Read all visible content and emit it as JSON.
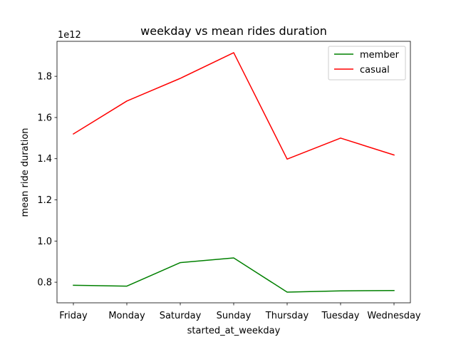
{
  "chart_data": {
    "type": "line",
    "title": "weekday vs mean rides duration",
    "xlabel": "started_at_weekday",
    "ylabel": "mean ride duration",
    "y_offset_text": "1e12",
    "categories": [
      "Friday",
      "Monday",
      "Saturday",
      "Sunday",
      "Thursday",
      "Tuesday",
      "Wednesday"
    ],
    "series": [
      {
        "name": "member",
        "color": "#008000",
        "values": [
          0.785,
          0.781,
          0.895,
          0.918,
          0.752,
          0.758,
          0.76
        ]
      },
      {
        "name": "casual",
        "color": "#ff0000",
        "values": [
          1.52,
          1.68,
          1.79,
          1.915,
          1.398,
          1.5,
          1.418
        ]
      }
    ],
    "ylim": [
      0.7,
      1.97
    ],
    "yticks": [
      0.8,
      1.0,
      1.2,
      1.4,
      1.6,
      1.8
    ],
    "ytick_labels": [
      "0.8",
      "1.0",
      "1.2",
      "1.4",
      "1.6",
      "1.8"
    ],
    "legend_position": "upper right",
    "grid": false
  }
}
